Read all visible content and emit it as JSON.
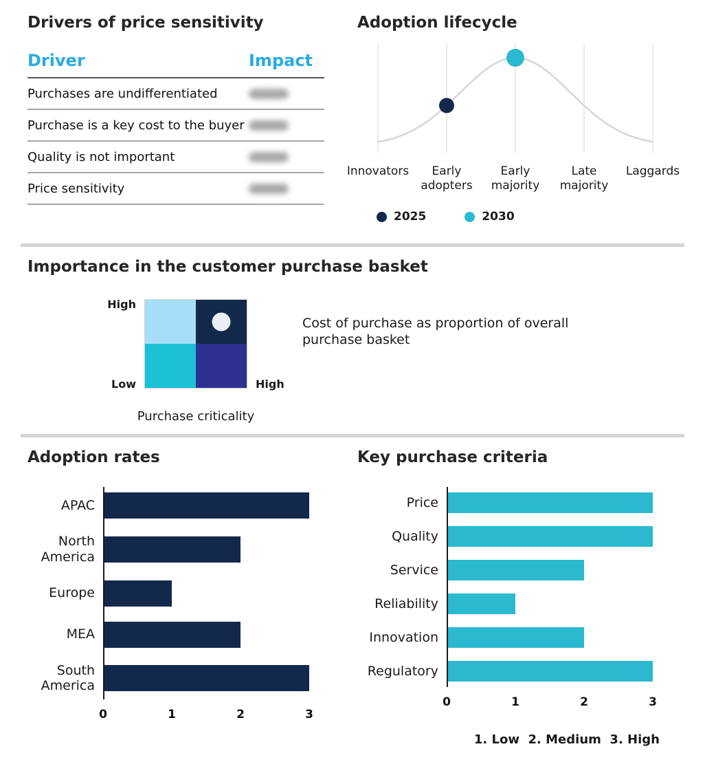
{
  "colors": {
    "navy": "#12294b",
    "cyan": "#2ab9cf",
    "header_blue": "#29abe2",
    "light_blue": "#a6def8",
    "teal": "#1cc1d6",
    "indigo": "#2e3192",
    "curve_gray": "#d6d6d6",
    "grid_gray": "#e4e4e4",
    "marker_white": "#e9eff8"
  },
  "sections": {
    "drivers": {
      "title": "Drivers of price sensitivity",
      "columns": [
        "Driver",
        "Impact"
      ],
      "rows": [
        "Purchases are undifferentiated",
        "Purchase is a key cost to the buyer",
        "Quality is not important",
        "Price sensitivity"
      ],
      "impact_values_blurred": true
    },
    "lifecycle": {
      "title": "Adoption lifecycle",
      "categories": [
        "Innovators",
        "Early adopters",
        "Early majority",
        "Late majority",
        "Laggards"
      ],
      "series": [
        {
          "name": "2025",
          "category": "Early adopters",
          "color": "#12294b"
        },
        {
          "name": "2030",
          "category": "Early majority",
          "color": "#2ab9cf"
        }
      ]
    },
    "matrix": {
      "title": "Importance in the customer purchase basket",
      "y_high": "High",
      "y_low": "Low",
      "x_high": "High",
      "x_label": "Purchase criticality",
      "note": "Cost of purchase as proportion of overall purchase basket",
      "quadrants": {
        "top_left": "#a6def8",
        "top_right": "#12294b",
        "bottom_left": "#1cc1d6",
        "bottom_right": "#2e3192"
      },
      "marker_quadrant": "top_right"
    },
    "adoption_rates": {
      "title": "Adoption rates"
    },
    "key_criteria": {
      "title": "Key purchase criteria",
      "footnote": "1. Low  2. Medium  3. High"
    }
  },
  "chart_data": [
    {
      "id": "adoption_lifecycle",
      "type": "line",
      "title": "Adoption lifecycle",
      "curve": "bell",
      "categories": [
        "Innovators",
        "Early adopters",
        "Early majority",
        "Late majority",
        "Laggards"
      ],
      "points": [
        {
          "series": "2025",
          "category": "Early adopters",
          "color": "#12294b"
        },
        {
          "series": "2030",
          "category": "Early majority",
          "color": "#2ab9cf"
        }
      ],
      "legend_position": "bottom",
      "grid": "vertical"
    },
    {
      "id": "adoption_rates",
      "type": "bar",
      "orientation": "horizontal",
      "title": "Adoption rates",
      "categories": [
        "APAC",
        "North America",
        "Europe",
        "MEA",
        "South America"
      ],
      "values": [
        3,
        2,
        1,
        2,
        3
      ],
      "xlim": [
        0,
        3
      ],
      "ticks": [
        0,
        1,
        2,
        3
      ],
      "color": "#12294b"
    },
    {
      "id": "key_purchase_criteria",
      "type": "bar",
      "orientation": "horizontal",
      "title": "Key purchase criteria",
      "categories": [
        "Price",
        "Quality",
        "Service",
        "Reliability",
        "Innovation",
        "Regulatory"
      ],
      "values": [
        3,
        3,
        2,
        1,
        2,
        3
      ],
      "xlim": [
        0,
        3
      ],
      "ticks": [
        0,
        1,
        2,
        3
      ],
      "color": "#2ab9cf",
      "footnote": "1. Low  2. Medium  3. High"
    }
  ]
}
